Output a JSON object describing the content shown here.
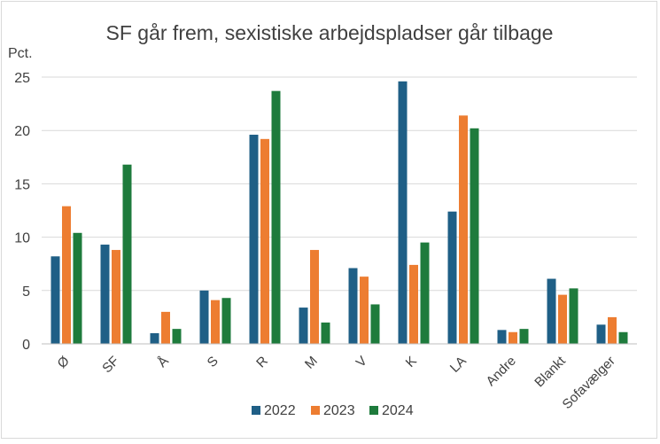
{
  "chart_data": {
    "type": "bar",
    "title": "SF går frem, sexistiske arbejdspladser går tilbage",
    "ylabel": "Pct.",
    "xlabel": "",
    "ylim": [
      0,
      25
    ],
    "yticks": [
      0,
      5,
      10,
      15,
      20,
      25
    ],
    "grid": true,
    "legend_position": "bottom",
    "categories": [
      "Ø",
      "SF",
      "Å",
      "S",
      "R",
      "M",
      "V",
      "K",
      "LA",
      "Andre",
      "Blankt",
      "Sofavælger"
    ],
    "series": [
      {
        "name": "2022",
        "color": "#1f5f86",
        "values": [
          8.2,
          9.3,
          1.0,
          5.0,
          19.6,
          3.4,
          7.1,
          24.6,
          12.4,
          1.3,
          6.1,
          1.8
        ]
      },
      {
        "name": "2023",
        "color": "#ed7d31",
        "values": [
          12.9,
          8.8,
          3.0,
          4.1,
          19.2,
          8.8,
          6.3,
          7.4,
          21.4,
          1.1,
          4.6,
          2.5
        ]
      },
      {
        "name": "2024",
        "color": "#1e7b3c",
        "values": [
          10.4,
          16.8,
          1.4,
          4.3,
          23.7,
          2.0,
          3.7,
          9.5,
          20.2,
          1.4,
          5.2,
          1.1
        ]
      }
    ]
  }
}
